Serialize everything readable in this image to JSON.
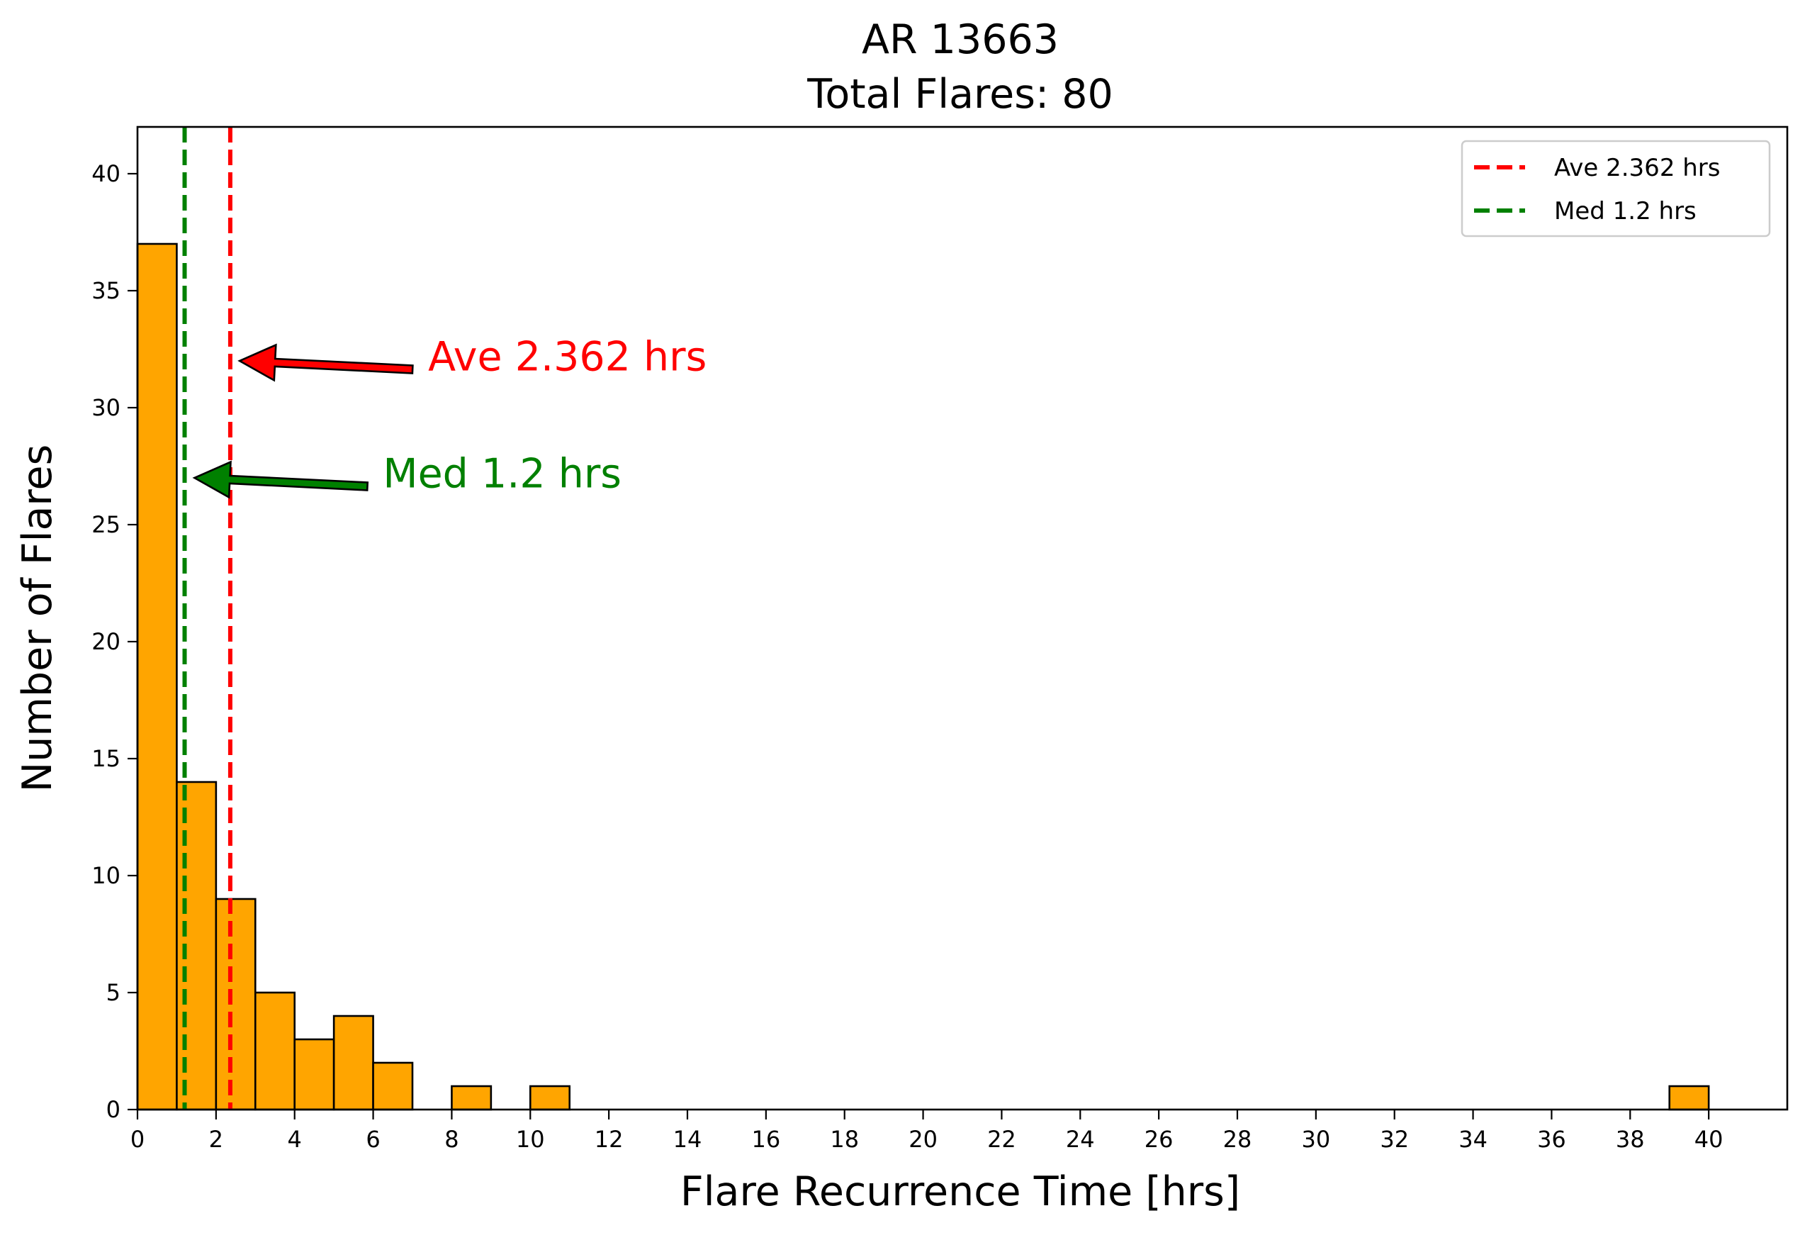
{
  "chart_data": {
    "type": "bar",
    "title": "AR 13663",
    "subtitle": "Total Flares: 80",
    "xlabel": "Flare Recurrence Time [hrs]",
    "ylabel": "Number of Flares",
    "xlim": [
      0,
      42
    ],
    "ylim": [
      0,
      42
    ],
    "xticks": [
      0,
      2,
      4,
      6,
      8,
      10,
      12,
      14,
      16,
      18,
      20,
      22,
      24,
      26,
      28,
      30,
      32,
      34,
      36,
      38,
      40
    ],
    "yticks": [
      0,
      5,
      10,
      15,
      20,
      25,
      30,
      35,
      40
    ],
    "bins": [
      {
        "start": 0,
        "end": 1,
        "count": 37
      },
      {
        "start": 1,
        "end": 2,
        "count": 14
      },
      {
        "start": 2,
        "end": 3,
        "count": 9
      },
      {
        "start": 3,
        "end": 4,
        "count": 5
      },
      {
        "start": 4,
        "end": 5,
        "count": 3
      },
      {
        "start": 5,
        "end": 6,
        "count": 4
      },
      {
        "start": 6,
        "end": 7,
        "count": 2
      },
      {
        "start": 8,
        "end": 9,
        "count": 1
      },
      {
        "start": 10,
        "end": 11,
        "count": 1
      },
      {
        "start": 39,
        "end": 40,
        "count": 1
      }
    ],
    "bar_color": "#ffa500",
    "bar_edge_color": "#000000",
    "reference_lines": [
      {
        "name": "Ave 2.362 hrs",
        "x": 2.362,
        "color": "#ff0000",
        "style": "dashed"
      },
      {
        "name": "Med 1.2 hrs",
        "x": 1.2,
        "color": "#008000",
        "style": "dashed"
      }
    ],
    "annotations": [
      {
        "text": "Ave 2.362 hrs",
        "color": "#ff0000",
        "arrow_tip": [
          2.6,
          32
        ],
        "text_at": [
          7.4,
          32.2
        ]
      },
      {
        "text": "Med 1.2 hrs",
        "color": "#008000",
        "arrow_tip": [
          1.45,
          27
        ],
        "text_at": [
          6.25,
          27.2
        ]
      }
    ],
    "legend": {
      "placement": "top-right"
    },
    "grid": false
  }
}
